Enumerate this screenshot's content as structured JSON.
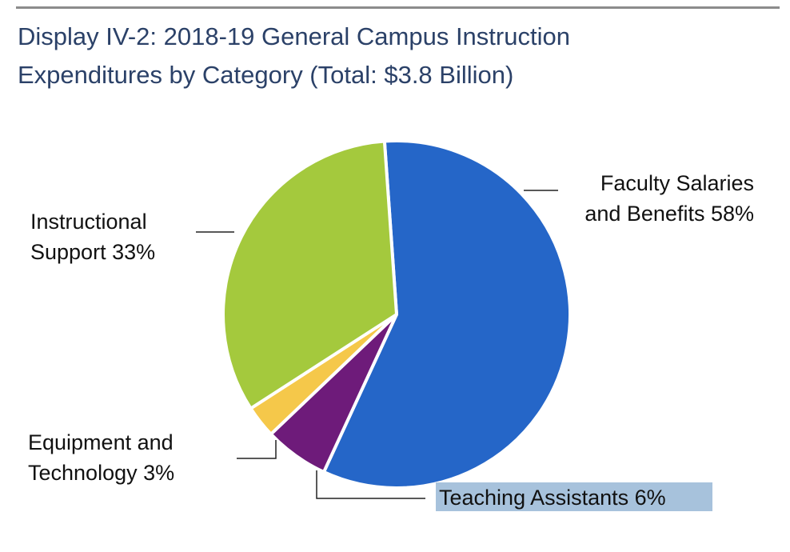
{
  "title_line1": "Display IV-2: 2018-19 General Campus Instruction",
  "title_line2": "Expenditures by Category (Total: $3.8 Billion)",
  "chart_data": {
    "type": "pie",
    "title": "Display IV-2: 2018-19 General Campus Instruction Expenditures by Category (Total: $3.8 Billion)",
    "unit": "percent",
    "slices": [
      {
        "name": "Faculty Salaries and Benefits",
        "value": 58,
        "color": "#2566c8",
        "label_lines": [
          "Faculty Salaries",
          "and Benefits 58%"
        ]
      },
      {
        "name": "Teaching Assistants",
        "value": 6,
        "color": "#6e1b7a",
        "label_lines": [
          "Teaching Assistants 6%"
        ]
      },
      {
        "name": "Equipment and Technology",
        "value": 3,
        "color": "#f5c84a",
        "label_lines": [
          "Equipment and",
          "Technology 3%"
        ]
      },
      {
        "name": "Instructional Support",
        "value": 33,
        "color": "#a4c93d",
        "label_lines": [
          "Instructional",
          "Support 33%"
        ]
      }
    ],
    "highlight_color": "#a7c2dc"
  }
}
